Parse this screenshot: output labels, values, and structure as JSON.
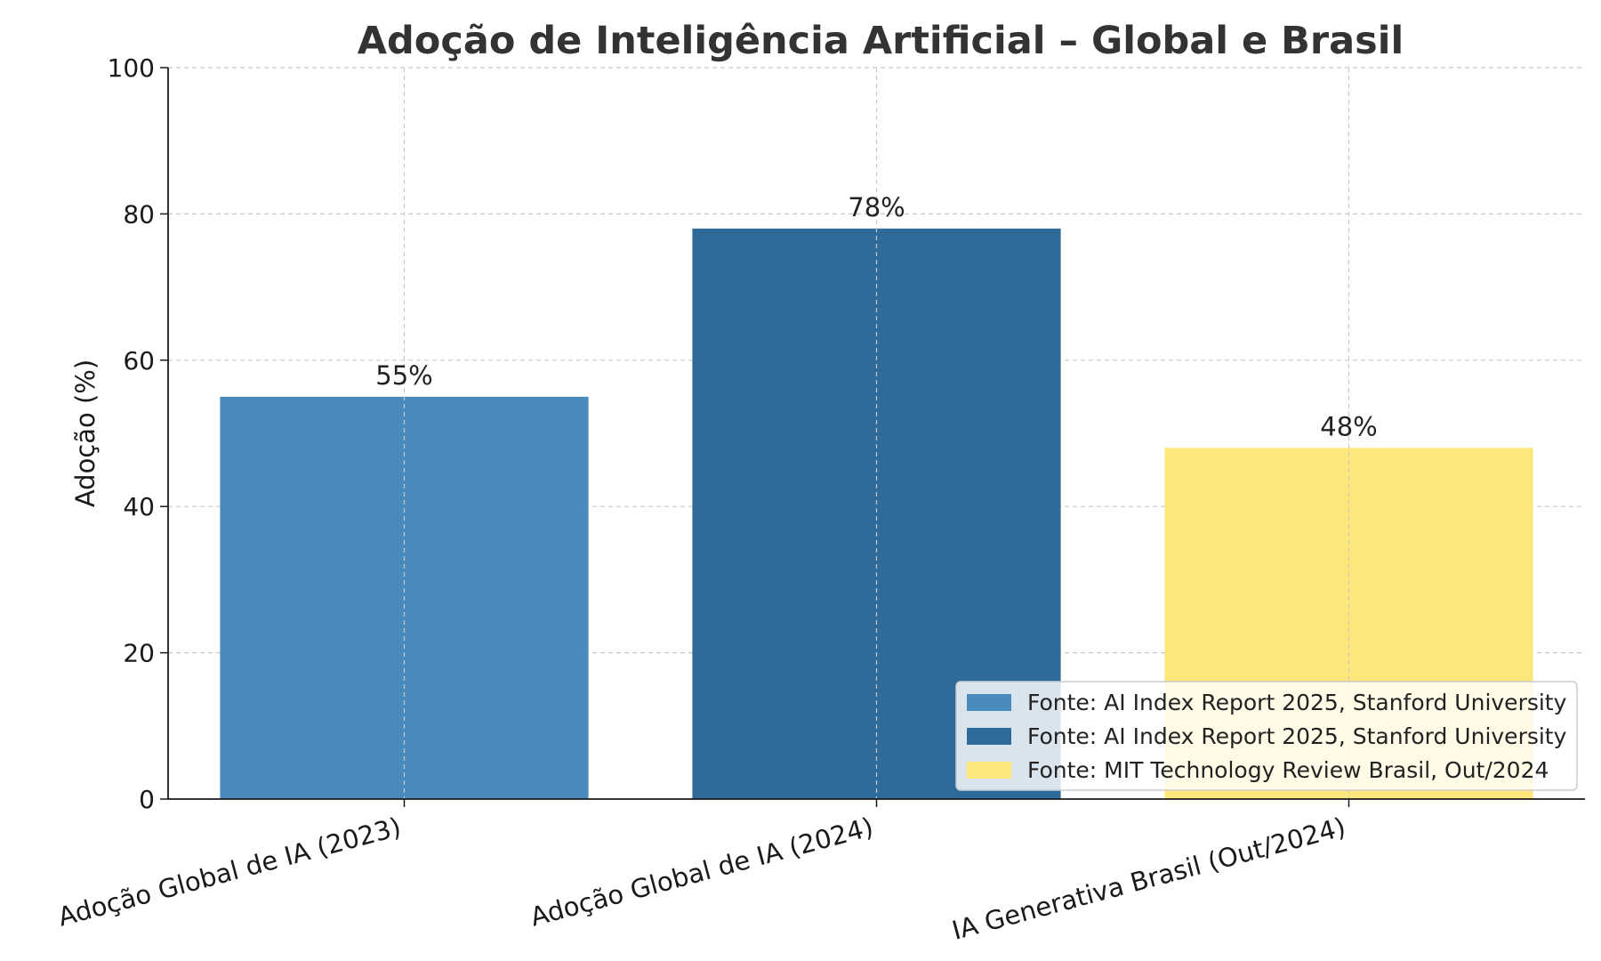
{
  "chart_data": {
    "type": "bar",
    "title": "Adoção de Inteligência Artificial – Global e Brasil",
    "xlabel": "",
    "ylabel": "Adoção (%)",
    "ylim": [
      0,
      100
    ],
    "yticks": [
      "0",
      "20",
      "40",
      "60",
      "80",
      "100"
    ],
    "grid": true,
    "categories": [
      "Adoção Global de IA (2023)",
      "Adoção Global de IA (2024)",
      "IA Generativa Brasil (Out/2024)"
    ],
    "values": [
      55,
      78,
      48
    ],
    "value_labels": [
      "55%",
      "78%",
      "48%"
    ],
    "colors": [
      "#4a8bbe",
      "#2e6a9a",
      "#fde67a"
    ],
    "legend": {
      "placement": "lower-right",
      "entries": [
        {
          "label": "Fonte: AI Index Report 2025, Stanford University",
          "color": "#4a8bbe"
        },
        {
          "label": "Fonte: AI Index Report 2025, Stanford University",
          "color": "#2e6a9a"
        },
        {
          "label": "Fonte: MIT Technology Review Brasil, Out/2024",
          "color": "#fde67a"
        }
      ]
    }
  }
}
